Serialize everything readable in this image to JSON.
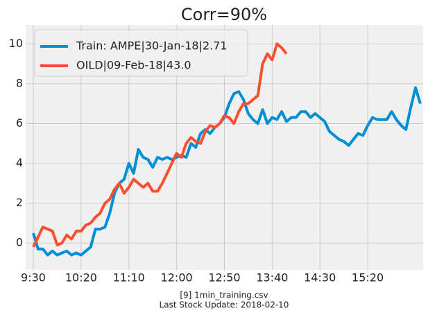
{
  "chart_data": {
    "type": "line",
    "title": "Corr=90%",
    "footer": [
      "[9] 1min_training.csv",
      "Last Stock Update: 2018-02-10"
    ],
    "x": [
      0,
      5,
      10,
      15,
      20,
      25,
      30,
      35,
      40,
      45,
      50,
      55,
      60,
      65,
      70,
      75,
      80,
      85,
      90,
      95,
      100,
      105,
      110,
      115,
      120,
      125,
      130,
      135,
      140,
      145,
      150,
      155,
      160,
      165,
      170,
      175,
      180,
      185,
      190,
      195,
      200,
      205,
      210,
      215,
      220,
      225,
      230,
      235,
      240,
      245,
      250,
      255,
      260,
      265,
      270,
      275,
      280,
      285,
      290,
      295,
      300,
      305,
      310,
      315,
      320,
      325,
      330,
      335,
      340,
      345,
      350,
      355,
      360,
      365,
      370,
      375,
      380,
      385,
      390,
      395,
      400,
      405
    ],
    "series": [
      {
        "name": "Train: AMPE|30-Jan-18|2.71",
        "color": "#008fd5",
        "values": [
          0.5,
          -0.3,
          -0.3,
          -0.6,
          -0.4,
          -0.6,
          -0.5,
          -0.4,
          -0.6,
          -0.5,
          -0.6,
          -0.4,
          -0.2,
          0.7,
          0.7,
          0.8,
          1.5,
          2.5,
          3.0,
          3.2,
          4.0,
          3.5,
          4.7,
          4.3,
          4.2,
          3.8,
          4.3,
          4.2,
          4.3,
          4.2,
          4.3,
          4.4,
          4.3,
          5.0,
          4.8,
          5.5,
          5.7,
          5.5,
          5.8,
          6.0,
          6.3,
          7.0,
          7.5,
          7.6,
          7.2,
          6.5,
          6.2,
          6.0,
          6.7,
          6.0,
          6.3,
          6.2,
          6.6,
          6.1,
          6.3,
          6.3,
          6.6,
          6.6,
          6.3,
          6.5,
          6.3,
          6.1,
          5.6,
          5.4,
          5.2,
          5.1,
          4.9,
          5.2,
          5.5,
          5.4,
          5.9,
          6.3,
          6.2,
          6.2,
          6.2,
          6.6,
          6.2,
          5.9,
          5.7,
          6.8,
          7.8,
          7.0
        ]
      },
      {
        "name": "OILD|09-Feb-18|43.0",
        "color": "#fc4f30",
        "values": [
          -0.2,
          0.3,
          0.8,
          0.7,
          0.6,
          -0.1,
          0.0,
          0.4,
          0.2,
          0.6,
          0.6,
          0.9,
          1.0,
          1.3,
          1.5,
          2.0,
          2.2,
          2.7,
          3.0,
          2.5,
          2.8,
          3.2,
          3.0,
          2.8,
          3.0,
          2.6,
          2.6,
          3.0,
          3.5,
          4.0,
          4.5,
          4.3,
          5.0,
          5.3,
          5.1,
          5.0,
          5.6,
          5.9,
          5.8,
          6.0,
          6.4,
          6.3,
          6.0,
          6.6,
          7.0,
          7.0,
          7.2,
          7.4,
          9.0,
          9.5,
          9.2,
          10.0,
          9.8,
          9.5,
          null,
          null,
          null,
          null,
          null,
          null,
          null,
          null,
          null,
          null,
          null,
          null,
          null,
          null,
          null,
          null,
          null,
          null,
          null,
          null,
          null,
          null,
          null,
          null,
          null,
          null,
          null,
          null
        ]
      }
    ],
    "xlim": [
      -8,
      408
    ],
    "xticks": [
      {
        "value": 0,
        "label": "9:30"
      },
      {
        "value": 50,
        "label": "10:20"
      },
      {
        "value": 100,
        "label": "11:10"
      },
      {
        "value": 150,
        "label": "12:00"
      },
      {
        "value": 200,
        "label": "12:50"
      },
      {
        "value": 250,
        "label": "13:40"
      },
      {
        "value": 300,
        "label": "14:30"
      },
      {
        "value": 350,
        "label": "15:20"
      }
    ],
    "ylim": [
      -1.35,
      10.95
    ],
    "yticks": [
      0,
      2,
      4,
      6,
      8,
      10
    ],
    "grid": true,
    "legend": "upper left"
  }
}
